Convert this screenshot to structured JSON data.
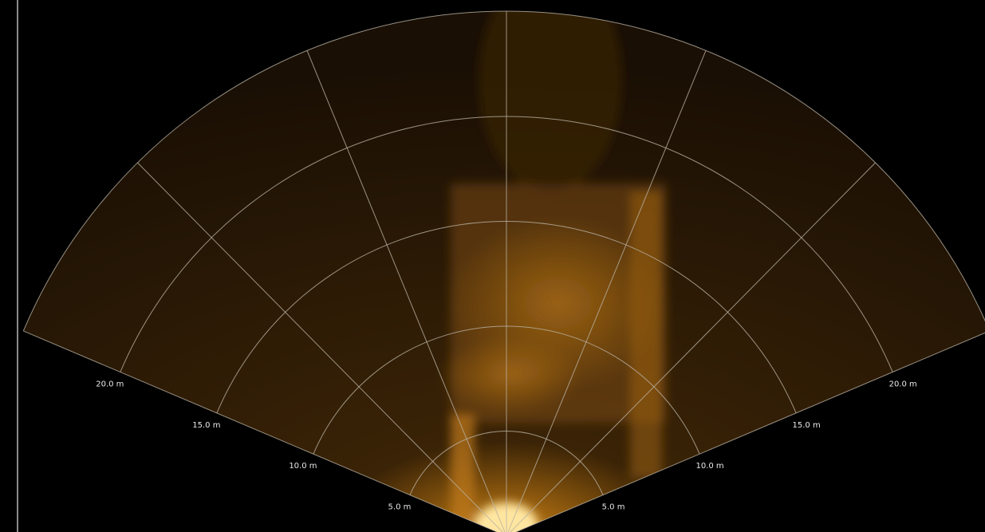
{
  "range_rings": [
    {
      "value": 5,
      "label": "5.0 m"
    },
    {
      "value": 10,
      "label": "10.0 m"
    },
    {
      "value": 15,
      "label": "15.0 m"
    },
    {
      "value": 20,
      "label": "20.0 m"
    }
  ]
}
